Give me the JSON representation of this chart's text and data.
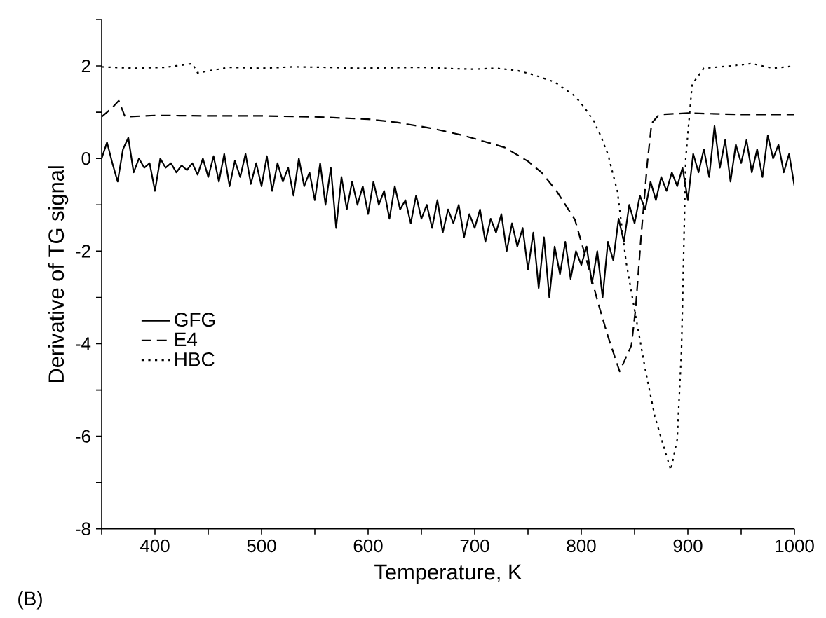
{
  "chart_data": {
    "type": "line",
    "xlabel": "Temperature, K",
    "ylabel": "Derivative of TG signal",
    "annotations": [
      "(B)"
    ],
    "xlim": [
      350,
      1000
    ],
    "ylim": [
      -8,
      3
    ],
    "xticks": [
      {
        "value": 350,
        "label": null
      },
      400,
      {
        "value": 450,
        "label": null
      },
      500,
      {
        "value": 550,
        "label": null
      },
      600,
      {
        "value": 650,
        "label": null
      },
      700,
      {
        "value": 750,
        "label": null
      },
      800,
      {
        "value": 850,
        "label": null
      },
      900,
      {
        "value": 950,
        "label": null
      },
      1000
    ],
    "yticks": [
      -8,
      {
        "value": -7,
        "label": null
      },
      -6,
      {
        "value": -5,
        "label": null
      },
      -4,
      {
        "value": -3,
        "label": null
      },
      -2,
      {
        "value": -1,
        "label": null
      },
      0,
      {
        "value": 1,
        "label": null
      },
      2,
      {
        "value": 3,
        "label": null
      }
    ],
    "legend": "left",
    "grid": false,
    "marker": "none",
    "series": [
      {
        "name": "GFG",
        "color": "#000000",
        "line_style": "solid",
        "x": [
          350,
          355,
          360,
          365,
          370,
          375,
          380,
          385,
          390,
          395,
          400,
          405,
          410,
          415,
          420,
          425,
          430,
          435,
          440,
          445,
          450,
          455,
          460,
          465,
          470,
          475,
          480,
          485,
          490,
          495,
          500,
          505,
          510,
          515,
          520,
          525,
          530,
          535,
          540,
          545,
          550,
          555,
          560,
          565,
          570,
          575,
          580,
          585,
          590,
          595,
          600,
          605,
          610,
          615,
          620,
          625,
          630,
          635,
          640,
          645,
          650,
          655,
          660,
          665,
          670,
          675,
          680,
          685,
          690,
          695,
          700,
          705,
          710,
          715,
          720,
          725,
          730,
          735,
          740,
          745,
          750,
          755,
          760,
          765,
          770,
          775,
          780,
          785,
          790,
          795,
          800,
          805,
          810,
          815,
          820,
          825,
          830,
          835,
          840,
          845,
          850,
          855,
          860,
          865,
          870,
          875,
          880,
          885,
          890,
          895,
          900,
          905,
          910,
          915,
          920,
          925,
          930,
          935,
          940,
          945,
          950,
          955,
          960,
          965,
          970,
          975,
          980,
          985,
          990,
          995,
          1000
        ],
        "values": [
          0.0,
          0.35,
          -0.1,
          -0.5,
          0.2,
          0.45,
          -0.3,
          0.0,
          -0.2,
          -0.1,
          -0.7,
          0.0,
          -0.2,
          -0.1,
          -0.3,
          -0.15,
          -0.25,
          -0.1,
          -0.35,
          0.0,
          -0.4,
          0.05,
          -0.5,
          0.1,
          -0.6,
          -0.05,
          -0.4,
          0.1,
          -0.55,
          -0.1,
          -0.6,
          0.05,
          -0.7,
          -0.1,
          -0.5,
          -0.2,
          -0.8,
          0.0,
          -0.6,
          -0.3,
          -0.9,
          -0.1,
          -1.0,
          -0.2,
          -1.5,
          -0.4,
          -1.1,
          -0.5,
          -1.0,
          -0.6,
          -1.2,
          -0.5,
          -1.0,
          -0.7,
          -1.3,
          -0.6,
          -1.1,
          -0.9,
          -1.4,
          -0.8,
          -1.3,
          -1.0,
          -1.5,
          -0.9,
          -1.6,
          -1.1,
          -1.4,
          -1.0,
          -1.7,
          -1.2,
          -1.5,
          -1.1,
          -1.8,
          -1.3,
          -1.6,
          -1.2,
          -2.0,
          -1.4,
          -1.9,
          -1.5,
          -2.4,
          -1.6,
          -2.8,
          -1.7,
          -3.0,
          -1.9,
          -2.5,
          -1.8,
          -2.6,
          -2.0,
          -2.3,
          -1.9,
          -2.7,
          -2.0,
          -3.0,
          -1.8,
          -2.2,
          -1.3,
          -1.8,
          -1.0,
          -1.4,
          -0.8,
          -1.1,
          -0.5,
          -0.9,
          -0.4,
          -0.7,
          -0.3,
          -0.6,
          -0.2,
          -0.9,
          0.1,
          -0.3,
          0.2,
          -0.4,
          0.7,
          -0.2,
          0.4,
          -0.5,
          0.3,
          -0.1,
          0.4,
          -0.3,
          0.2,
          -0.4,
          0.5,
          0.0,
          0.3,
          -0.3,
          0.1,
          -0.6
        ]
      },
      {
        "name": "E4",
        "color": "#000000",
        "line_style": "dashed",
        "x": [
          350,
          355,
          360,
          366,
          372,
          400,
          450,
          500,
          550,
          600,
          627,
          660,
          689,
          728,
          750,
          763,
          777,
          794,
          805,
          816,
          825,
          836,
          847,
          851,
          856,
          862,
          866,
          873,
          900,
          950,
          1000
        ],
        "values": [
          0.9,
          1.0,
          1.1,
          1.25,
          0.9,
          0.93,
          0.92,
          0.92,
          0.9,
          0.85,
          0.78,
          0.65,
          0.5,
          0.24,
          -0.06,
          -0.31,
          -0.71,
          -1.32,
          -2.2,
          -3.14,
          -3.84,
          -4.6,
          -4.04,
          -3.24,
          -1.72,
          -0.09,
          0.76,
          0.95,
          0.98,
          0.95,
          0.95
        ]
      },
      {
        "name": "HBC",
        "color": "#000000",
        "line_style": "dotted",
        "x": [
          350,
          380,
          410,
          435,
          440,
          470,
          500,
          530,
          560,
          590,
          620,
          650,
          680,
          700,
          720,
          740,
          755,
          775,
          794,
          803,
          812,
          818,
          825,
          834,
          842,
          851,
          860,
          869,
          877,
          884,
          890,
          894,
          896,
          898,
          904,
          915,
          940,
          960,
          980,
          1000
        ],
        "values": [
          1.98,
          1.95,
          1.97,
          2.05,
          1.85,
          1.97,
          1.95,
          1.98,
          1.97,
          1.95,
          1.96,
          1.97,
          1.94,
          1.93,
          1.95,
          1.9,
          1.81,
          1.65,
          1.35,
          1.1,
          0.8,
          0.5,
          0.09,
          -0.72,
          -2.23,
          -3.4,
          -4.55,
          -5.57,
          -6.2,
          -6.73,
          -6.07,
          -4.15,
          -2.12,
          0.0,
          1.6,
          1.95,
          2.0,
          2.05,
          1.95,
          2.0
        ]
      }
    ]
  }
}
